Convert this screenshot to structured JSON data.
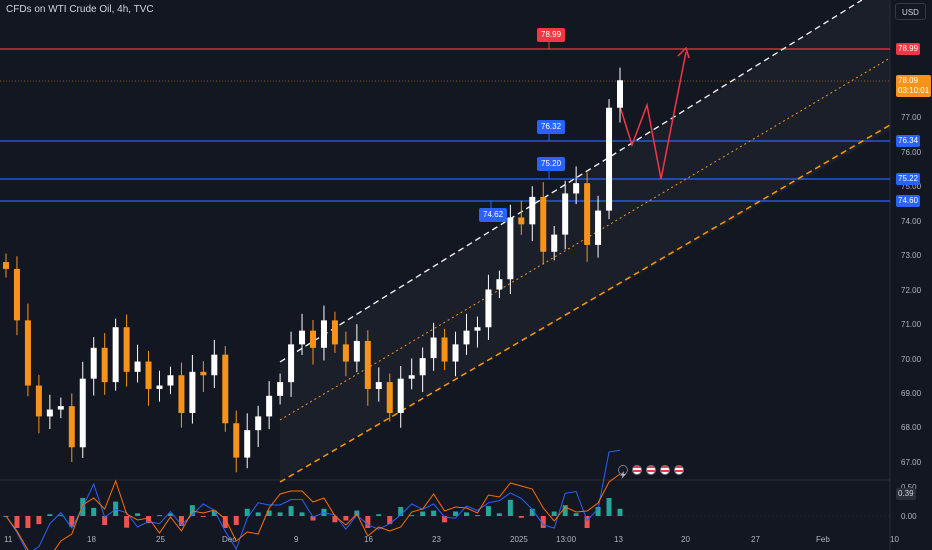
{
  "title": "CFDs on WTI Crude Oil, 4h, TVC",
  "currency": "USD",
  "colors": {
    "background": "#131722",
    "up_candle": "#ffffff",
    "down_candle": "#f7931a",
    "red_line": "#f23645",
    "blue_line": "#2962ff",
    "orange_dash": "#ff9800",
    "white_dash": "#ffffff",
    "macd_line": "#2962ff",
    "signal_line": "#ff6d00",
    "hist_up": "#26a69a",
    "hist_down": "#ef5350"
  },
  "price_axis": {
    "labels": [
      "77.00",
      "76.00",
      "75.00",
      "74.00",
      "73.00",
      "72.00",
      "71.00",
      "70.00",
      "69.00",
      "68.00",
      "67.00"
    ]
  },
  "indicator_axis": {
    "labels": [
      "0.50",
      "0.00"
    ],
    "current": "0.39"
  },
  "time_axis": {
    "labels": [
      "11",
      "18",
      "25",
      "Dec",
      "9",
      "16",
      "23",
      "2025",
      "13:00",
      "13",
      "20",
      "27",
      "Feb",
      "10"
    ]
  },
  "price_tags": {
    "resistance": "78.99",
    "last_price": "78.09",
    "countdown": "03:10:01",
    "level_1": "76.34",
    "level_2": "75.22",
    "level_3": "74.60"
  },
  "callouts": {
    "top": "78.99",
    "mid": "76.32",
    "low": "75.20",
    "left": "74.62"
  },
  "events": [
    "flash-icon",
    "us-flag-icon",
    "us-flag-icon",
    "us-flag-icon",
    "us-flag-icon"
  ],
  "chart_data": {
    "type": "candlestick",
    "symbol": "CFDs on WTI Crude Oil, 4h, TVC",
    "ylim": [
      66.6,
      80.2
    ],
    "horizontal_levels": [
      78.99,
      76.34,
      75.22,
      74.6
    ],
    "last_price": 78.09,
    "x": [
      "11",
      "18",
      "25",
      "Dec",
      "9",
      "16",
      "23",
      "2025",
      "13:00",
      "13",
      "20",
      "27",
      "Feb",
      "10"
    ],
    "closes": [
      72.6,
      71.1,
      69.2,
      68.3,
      68.5,
      68.6,
      67.4,
      69.4,
      70.3,
      69.3,
      70.9,
      69.6,
      69.9,
      69.1,
      69.2,
      69.5,
      68.4,
      69.6,
      69.5,
      70.1,
      68.1,
      67.1,
      67.9,
      68.3,
      68.9,
      69.3,
      70.4,
      70.8,
      70.3,
      71.1,
      70.4,
      69.9,
      70.5,
      69.1,
      69.3,
      68.4,
      69.4,
      69.5,
      70.0,
      70.6,
      69.9,
      70.4,
      70.8,
      70.9,
      72.0,
      72.3,
      74.1,
      73.9,
      74.7,
      73.1,
      73.6,
      74.8,
      75.1,
      73.3,
      74.3,
      77.3,
      78.1
    ],
    "projection_path": [
      76.34,
      77.0,
      75.22,
      79.0
    ],
    "macd": {
      "current": 0.39,
      "ylim": [
        -0.5,
        0.6
      ]
    }
  }
}
